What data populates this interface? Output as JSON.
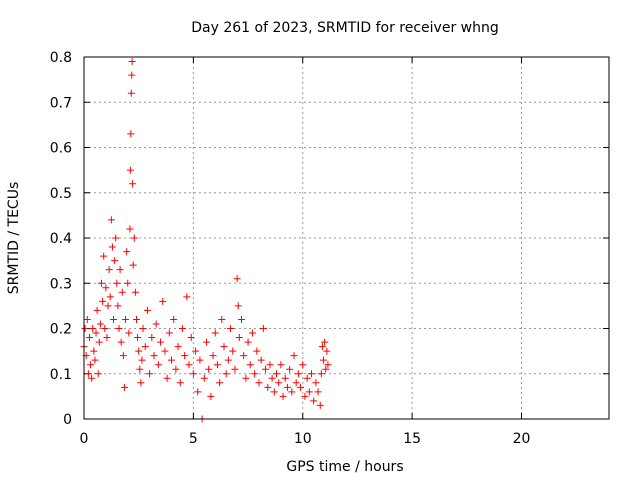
{
  "chart_data": {
    "type": "scatter",
    "title": "Day 261 of 2023, SRMTID for receiver whng",
    "xlabel": "GPS time / hours",
    "ylabel": "SRMTID / TECUs",
    "xlim": [
      0,
      24
    ],
    "ylim": [
      0,
      0.8
    ],
    "x_ticks": [
      0,
      5,
      10,
      15,
      20
    ],
    "y_ticks": [
      0,
      0.1,
      0.2,
      0.3,
      0.4,
      0.5,
      0.6,
      0.7,
      0.8
    ],
    "x_tick_labels": [
      "0",
      "5",
      "10",
      "15",
      "20"
    ],
    "y_tick_labels": [
      "0",
      "0.1",
      "0.2",
      "0.3",
      "0.4",
      "0.5",
      "0.6",
      "0.7",
      "0.8"
    ],
    "grid": true,
    "marker": "+",
    "color": "#ff0000",
    "series": [
      {
        "name": "SRMTID",
        "points": [
          [
            0.0,
            0.16
          ],
          [
            0.05,
            0.2
          ],
          [
            0.1,
            0.14
          ],
          [
            0.15,
            0.22
          ],
          [
            0.2,
            0.1
          ],
          [
            0.25,
            0.18
          ],
          [
            0.3,
            0.12
          ],
          [
            0.35,
            0.09
          ],
          [
            0.4,
            0.2
          ],
          [
            0.45,
            0.15
          ],
          [
            0.5,
            0.13
          ],
          [
            0.55,
            0.19
          ],
          [
            0.6,
            0.24
          ],
          [
            0.65,
            0.1
          ],
          [
            0.7,
            0.17
          ],
          [
            0.75,
            0.21
          ],
          [
            0.8,
            0.3
          ],
          [
            0.85,
            0.26
          ],
          [
            0.9,
            0.36
          ],
          [
            0.95,
            0.2
          ],
          [
            1.0,
            0.29
          ],
          [
            1.05,
            0.18
          ],
          [
            1.1,
            0.25
          ],
          [
            1.15,
            0.33
          ],
          [
            1.2,
            0.27
          ],
          [
            1.25,
            0.44
          ],
          [
            1.3,
            0.38
          ],
          [
            1.35,
            0.22
          ],
          [
            1.4,
            0.35
          ],
          [
            1.45,
            0.4
          ],
          [
            1.5,
            0.3
          ],
          [
            1.55,
            0.25
          ],
          [
            1.6,
            0.2
          ],
          [
            1.65,
            0.33
          ],
          [
            1.7,
            0.17
          ],
          [
            1.75,
            0.28
          ],
          [
            1.8,
            0.14
          ],
          [
            1.85,
            0.07
          ],
          [
            1.9,
            0.22
          ],
          [
            1.95,
            0.37
          ],
          [
            2.0,
            0.3
          ],
          [
            2.05,
            0.19
          ],
          [
            2.1,
            0.42
          ],
          [
            2.12,
            0.55
          ],
          [
            2.14,
            0.63
          ],
          [
            2.16,
            0.72
          ],
          [
            2.18,
            0.76
          ],
          [
            2.2,
            0.79
          ],
          [
            2.22,
            0.52
          ],
          [
            2.25,
            0.34
          ],
          [
            2.3,
            0.4
          ],
          [
            2.35,
            0.28
          ],
          [
            2.4,
            0.22
          ],
          [
            2.45,
            0.18
          ],
          [
            2.5,
            0.15
          ],
          [
            2.55,
            0.11
          ],
          [
            2.6,
            0.08
          ],
          [
            2.65,
            0.13
          ],
          [
            2.7,
            0.2
          ],
          [
            2.8,
            0.16
          ],
          [
            2.9,
            0.24
          ],
          [
            3.0,
            0.1
          ],
          [
            3.1,
            0.18
          ],
          [
            3.2,
            0.14
          ],
          [
            3.3,
            0.21
          ],
          [
            3.4,
            0.12
          ],
          [
            3.5,
            0.17
          ],
          [
            3.6,
            0.26
          ],
          [
            3.7,
            0.15
          ],
          [
            3.8,
            0.09
          ],
          [
            3.9,
            0.19
          ],
          [
            4.0,
            0.13
          ],
          [
            4.1,
            0.22
          ],
          [
            4.2,
            0.11
          ],
          [
            4.3,
            0.16
          ],
          [
            4.4,
            0.08
          ],
          [
            4.5,
            0.2
          ],
          [
            4.6,
            0.14
          ],
          [
            4.7,
            0.27
          ],
          [
            4.8,
            0.12
          ],
          [
            4.9,
            0.18
          ],
          [
            5.0,
            0.1
          ],
          [
            5.1,
            0.15
          ],
          [
            5.2,
            0.06
          ],
          [
            5.3,
            0.13
          ],
          [
            5.4,
            0.0
          ],
          [
            5.5,
            0.09
          ],
          [
            5.6,
            0.17
          ],
          [
            5.7,
            0.11
          ],
          [
            5.8,
            0.05
          ],
          [
            5.9,
            0.14
          ],
          [
            6.0,
            0.19
          ],
          [
            6.1,
            0.12
          ],
          [
            6.2,
            0.08
          ],
          [
            6.3,
            0.22
          ],
          [
            6.4,
            0.16
          ],
          [
            6.5,
            0.1
          ],
          [
            6.6,
            0.13
          ],
          [
            6.7,
            0.2
          ],
          [
            6.8,
            0.15
          ],
          [
            6.9,
            0.11
          ],
          [
            7.0,
            0.31
          ],
          [
            7.05,
            0.25
          ],
          [
            7.1,
            0.18
          ],
          [
            7.2,
            0.22
          ],
          [
            7.3,
            0.14
          ],
          [
            7.4,
            0.09
          ],
          [
            7.5,
            0.17
          ],
          [
            7.6,
            0.12
          ],
          [
            7.7,
            0.19
          ],
          [
            7.8,
            0.1
          ],
          [
            7.9,
            0.15
          ],
          [
            8.0,
            0.08
          ],
          [
            8.1,
            0.13
          ],
          [
            8.2,
            0.2
          ],
          [
            8.3,
            0.11
          ],
          [
            8.4,
            0.07
          ],
          [
            8.5,
            0.12
          ],
          [
            8.6,
            0.09
          ],
          [
            8.7,
            0.06
          ],
          [
            8.8,
            0.1
          ],
          [
            8.9,
            0.08
          ],
          [
            9.0,
            0.12
          ],
          [
            9.1,
            0.05
          ],
          [
            9.2,
            0.09
          ],
          [
            9.3,
            0.07
          ],
          [
            9.4,
            0.11
          ],
          [
            9.5,
            0.06
          ],
          [
            9.6,
            0.14
          ],
          [
            9.7,
            0.08
          ],
          [
            9.8,
            0.1
          ],
          [
            9.9,
            0.07
          ],
          [
            10.0,
            0.12
          ],
          [
            10.1,
            0.05
          ],
          [
            10.2,
            0.09
          ],
          [
            10.3,
            0.06
          ],
          [
            10.4,
            0.1
          ],
          [
            10.5,
            0.04
          ],
          [
            10.6,
            0.08
          ],
          [
            10.7,
            0.06
          ],
          [
            10.8,
            0.03
          ],
          [
            10.85,
            0.1
          ],
          [
            10.9,
            0.16
          ],
          [
            10.95,
            0.13
          ],
          [
            11.0,
            0.17
          ],
          [
            11.05,
            0.11
          ],
          [
            11.1,
            0.15
          ],
          [
            11.15,
            0.12
          ]
        ]
      }
    ]
  }
}
